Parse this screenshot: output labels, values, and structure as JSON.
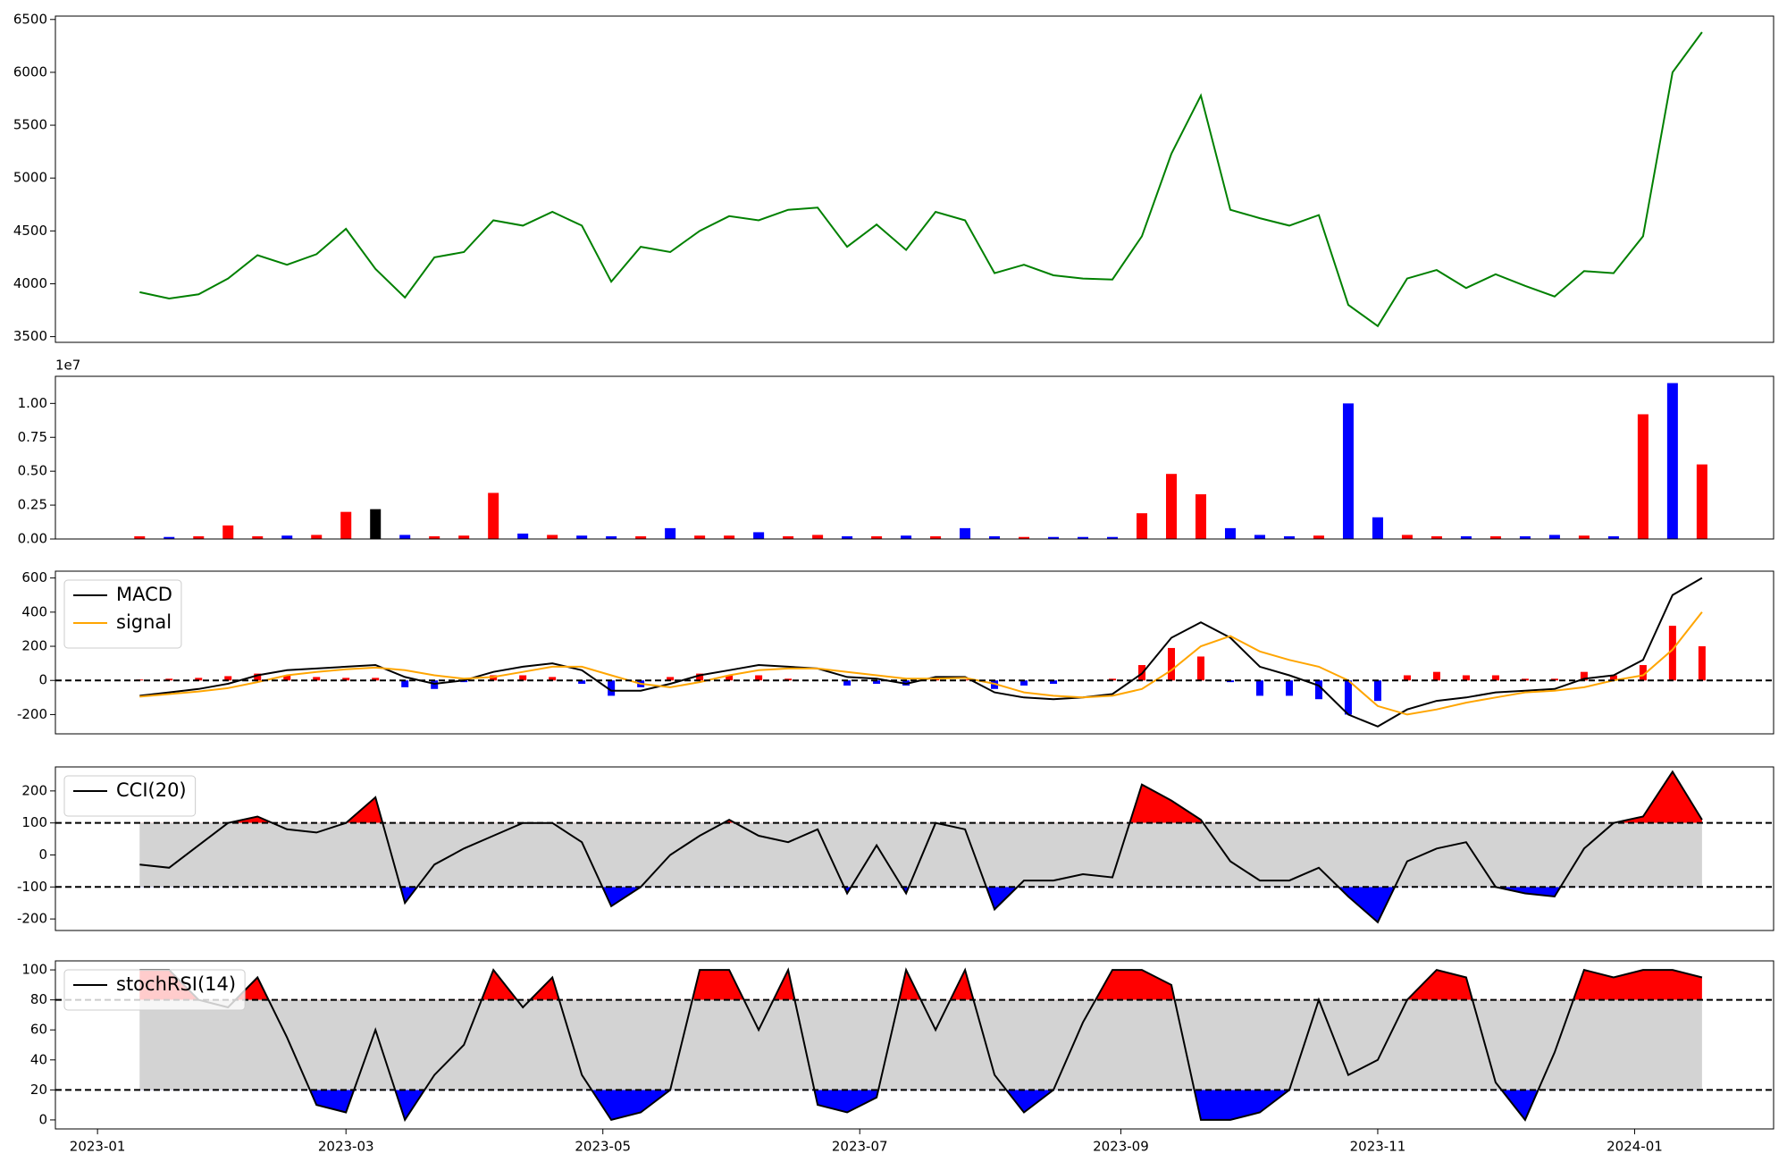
{
  "chart_data": {
    "type": "multi-panel",
    "x": [
      "2023-01-11",
      "2023-01-18",
      "2023-01-25",
      "2023-02-01",
      "2023-02-08",
      "2023-02-15",
      "2023-02-22",
      "2023-03-01",
      "2023-03-08",
      "2023-03-15",
      "2023-03-22",
      "2023-03-29",
      "2023-04-05",
      "2023-04-12",
      "2023-04-19",
      "2023-04-26",
      "2023-05-03",
      "2023-05-10",
      "2023-05-17",
      "2023-05-24",
      "2023-05-31",
      "2023-06-07",
      "2023-06-14",
      "2023-06-21",
      "2023-06-28",
      "2023-07-05",
      "2023-07-12",
      "2023-07-19",
      "2023-07-26",
      "2023-08-02",
      "2023-08-09",
      "2023-08-16",
      "2023-08-23",
      "2023-08-30",
      "2023-09-06",
      "2023-09-13",
      "2023-09-20",
      "2023-09-27",
      "2023-10-04",
      "2023-10-11",
      "2023-10-18",
      "2023-10-25",
      "2023-11-01",
      "2023-11-08",
      "2023-11-15",
      "2023-11-22",
      "2023-11-29",
      "2023-12-06",
      "2023-12-13",
      "2023-12-20",
      "2023-12-27",
      "2024-01-03",
      "2024-01-10",
      "2024-01-17"
    ],
    "xlim": [
      "2022-12-22",
      "2024-02-03"
    ],
    "xticks": [
      {
        "value": "2023-01-01",
        "label": "2023-01"
      },
      {
        "value": "2023-03-01",
        "label": "2023-03"
      },
      {
        "value": "2023-05-01",
        "label": "2023-05"
      },
      {
        "value": "2023-07-01",
        "label": "2023-07"
      },
      {
        "value": "2023-09-01",
        "label": "2023-09"
      },
      {
        "value": "2023-11-01",
        "label": "2023-11"
      },
      {
        "value": "2024-01-01",
        "label": "2024-01"
      }
    ],
    "panels": [
      {
        "type": "line",
        "ylim": [
          3446,
          6532
        ],
        "yticks": [
          3500,
          4000,
          4500,
          5000,
          5500,
          6000,
          6500
        ],
        "series": [
          {
            "color": "#008000",
            "values": [
              3920,
              3860,
              3900,
              4050,
              4270,
              4180,
              4280,
              4520,
              4140,
              3870,
              4250,
              4300,
              4600,
              4550,
              4680,
              4550,
              4020,
              4350,
              4300,
              4500,
              4640,
              4600,
              4700,
              4720,
              4350,
              4560,
              4320,
              4680,
              4600,
              4100,
              4180,
              4080,
              4050,
              4040,
              4450,
              5230,
              5780,
              4700,
              4620,
              4550,
              4650,
              3800,
              3600,
              4050,
              4130,
              3960,
              4090,
              3980,
              3880,
              4120,
              4100,
              4450,
              6000,
              6380
            ]
          }
        ]
      },
      {
        "type": "bar",
        "ylim": [
          0,
          12000000
        ],
        "y_offset_label": "1e7",
        "yticks": [
          {
            "value": 0,
            "label": "0.00"
          },
          {
            "value": 2500000,
            "label": "0.25"
          },
          {
            "value": 5000000,
            "label": "0.50"
          },
          {
            "value": 7500000,
            "label": "0.75"
          },
          {
            "value": 10000000,
            "label": "1.00"
          }
        ],
        "values": [
          200000,
          150000,
          200000,
          1000000,
          200000,
          250000,
          300000,
          2000000,
          2200000,
          300000,
          200000,
          250000,
          3400000,
          400000,
          300000,
          250000,
          200000,
          200000,
          800000,
          250000,
          250000,
          500000,
          200000,
          300000,
          200000,
          200000,
          250000,
          200000,
          800000,
          200000,
          150000,
          150000,
          150000,
          150000,
          1900000,
          4800000,
          3300000,
          800000,
          300000,
          200000,
          250000,
          10000000,
          1600000,
          300000,
          200000,
          200000,
          200000,
          200000,
          300000,
          250000,
          200000,
          9200000,
          11500000,
          5500000
        ],
        "colors": [
          "red",
          "blue",
          "red",
          "red",
          "red",
          "blue",
          "red",
          "red",
          "black",
          "blue",
          "red",
          "red",
          "red",
          "blue",
          "red",
          "blue",
          "blue",
          "red",
          "blue",
          "red",
          "red",
          "blue",
          "red",
          "red",
          "blue",
          "red",
          "blue",
          "red",
          "blue",
          "blue",
          "red",
          "blue",
          "blue",
          "blue",
          "red",
          "red",
          "red",
          "blue",
          "blue",
          "blue",
          "red",
          "blue",
          "blue",
          "red",
          "red",
          "blue",
          "red",
          "blue",
          "blue",
          "red",
          "blue",
          "red",
          "blue",
          "red"
        ]
      },
      {
        "type": "macd",
        "ylim": [
          -313,
          640
        ],
        "yticks": [
          -200,
          0,
          200,
          400,
          600
        ],
        "reference_lines": [
          0
        ],
        "legend": "upper left",
        "series": [
          {
            "name": "MACD",
            "color": "#000000",
            "values": [
              -90,
              -70,
              -50,
              -20,
              30,
              60,
              70,
              80,
              90,
              20,
              -20,
              0,
              50,
              80,
              100,
              60,
              -60,
              -60,
              -20,
              30,
              60,
              90,
              80,
              70,
              20,
              10,
              -20,
              20,
              20,
              -70,
              -100,
              -110,
              -100,
              -80,
              40,
              250,
              340,
              250,
              80,
              30,
              -30,
              -200,
              -270,
              -170,
              -120,
              -100,
              -70,
              -60,
              -50,
              10,
              30,
              120,
              500,
              600
            ]
          },
          {
            "name": "signal",
            "color": "#ffa500",
            "values": [
              -95,
              -80,
              -65,
              -45,
              -10,
              30,
              50,
              65,
              75,
              60,
              30,
              10,
              20,
              50,
              80,
              80,
              30,
              -20,
              -40,
              -10,
              30,
              60,
              70,
              70,
              50,
              30,
              10,
              10,
              15,
              -20,
              -70,
              -90,
              -100,
              -90,
              -50,
              60,
              200,
              260,
              170,
              120,
              80,
              0,
              -150,
              -200,
              -170,
              -130,
              -100,
              -70,
              -60,
              -40,
              0,
              30,
              180,
              400
            ]
          }
        ],
        "histogram": {
          "up_color": "red",
          "down_color": "blue",
          "values": [
            5,
            10,
            15,
            25,
            40,
            30,
            20,
            15,
            15,
            -40,
            -50,
            -10,
            30,
            30,
            20,
            -20,
            -90,
            -40,
            20,
            40,
            30,
            30,
            10,
            0,
            -30,
            -20,
            -30,
            10,
            5,
            -50,
            -30,
            -20,
            0,
            10,
            90,
            190,
            140,
            -10,
            -90,
            -90,
            -110,
            -200,
            -120,
            30,
            50,
            30,
            30,
            10,
            10,
            50,
            30,
            90,
            320,
            200
          ]
        }
      },
      {
        "type": "band",
        "ylim": [
          -236,
          275
        ],
        "yticks": [
          -200,
          -100,
          0,
          100,
          200
        ],
        "thresholds": [
          -100,
          100
        ],
        "band_color": "#d3d3d3",
        "above_color": "red",
        "below_color": "blue",
        "legend": "upper left",
        "series": [
          {
            "name": "CCI(20)",
            "color": "#000000",
            "values": [
              -30,
              -40,
              30,
              100,
              120,
              80,
              70,
              100,
              180,
              -150,
              -30,
              20,
              60,
              100,
              100,
              40,
              -160,
              -100,
              0,
              60,
              110,
              60,
              40,
              80,
              -120,
              30,
              -120,
              100,
              80,
              -170,
              -80,
              -80,
              -60,
              -70,
              220,
              170,
              110,
              -20,
              -80,
              -80,
              -40,
              -130,
              -210,
              -20,
              20,
              40,
              -100,
              -120,
              -130,
              20,
              100,
              120,
              260,
              110
            ]
          }
        ]
      },
      {
        "type": "band",
        "ylim": [
          -6,
          106
        ],
        "yticks": [
          0,
          20,
          40,
          60,
          80,
          100
        ],
        "thresholds": [
          20,
          80
        ],
        "band_color": "#d3d3d3",
        "above_color": "red",
        "below_color": "blue",
        "legend": "upper left",
        "series": [
          {
            "name": "stochRSI(14)",
            "color": "#000000",
            "values": [
              100,
              100,
              80,
              75,
              95,
              55,
              10,
              5,
              60,
              0,
              30,
              50,
              100,
              75,
              95,
              30,
              0,
              5,
              20,
              100,
              100,
              60,
              100,
              10,
              5,
              15,
              100,
              60,
              100,
              30,
              5,
              20,
              65,
              100,
              100,
              90,
              0,
              0,
              5,
              20,
              80,
              30,
              40,
              80,
              100,
              95,
              25,
              0,
              45,
              100,
              95,
              100,
              100,
              95
            ]
          }
        ]
      }
    ]
  }
}
